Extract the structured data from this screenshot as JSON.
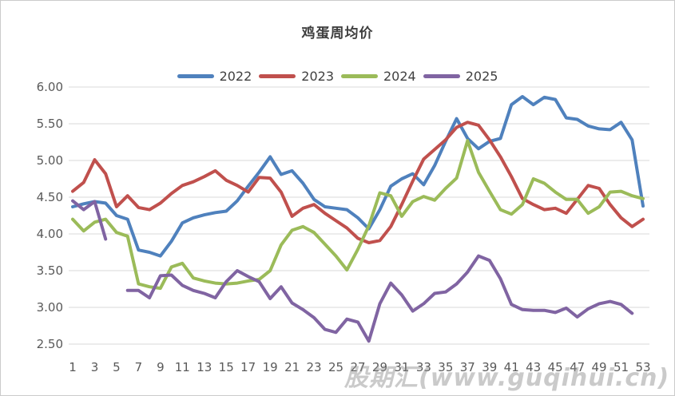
{
  "chart_data": {
    "type": "line",
    "title": "鸡蛋周均价",
    "xlabel": "",
    "ylabel": "",
    "x_ticks": [
      1,
      3,
      5,
      7,
      9,
      11,
      13,
      15,
      17,
      19,
      21,
      23,
      25,
      27,
      29,
      31,
      33,
      35,
      37,
      39,
      41,
      43,
      45,
      47,
      49,
      51,
      53
    ],
    "xlim": [
      1,
      53
    ],
    "ylim": [
      2.5,
      6.0
    ],
    "y_ticks": [
      {
        "label": "6.00",
        "value": 6.0
      },
      {
        "label": "5.50",
        "value": 5.5
      },
      {
        "label": "5.00",
        "value": 5.0
      },
      {
        "label": "4.50",
        "value": 4.5
      },
      {
        "label": "4.00",
        "value": 4.0
      },
      {
        "label": "3.50",
        "value": 3.5
      },
      {
        "label": "3.00",
        "value": 3.0
      },
      {
        "label": "2.50",
        "value": 2.5
      }
    ],
    "grid": "horizontal",
    "legend_position": "top",
    "x": [
      1,
      2,
      3,
      4,
      5,
      6,
      7,
      8,
      9,
      10,
      11,
      12,
      13,
      14,
      15,
      16,
      17,
      18,
      19,
      20,
      21,
      22,
      23,
      24,
      25,
      26,
      27,
      28,
      29,
      30,
      31,
      32,
      33,
      34,
      35,
      36,
      37,
      38,
      39,
      40,
      41,
      42,
      43,
      44,
      45,
      46,
      47,
      48,
      49,
      50,
      51,
      52,
      53
    ],
    "series": [
      {
        "name": "2022",
        "color": "#4F81BD",
        "values": [
          4.37,
          4.41,
          4.44,
          4.42,
          4.25,
          4.2,
          3.78,
          3.75,
          3.7,
          3.9,
          4.15,
          4.22,
          4.26,
          4.29,
          4.31,
          4.45,
          4.65,
          4.84,
          5.05,
          4.81,
          4.86,
          4.69,
          4.47,
          4.37,
          4.35,
          4.33,
          4.22,
          4.07,
          4.33,
          4.65,
          4.75,
          4.82,
          4.67,
          4.93,
          5.26,
          5.57,
          5.3,
          5.16,
          5.26,
          5.3,
          5.76,
          5.87,
          5.76,
          5.86,
          5.83,
          5.58,
          5.56,
          5.47,
          5.43,
          5.42,
          5.52,
          5.28,
          4.38
        ]
      },
      {
        "name": "2023",
        "color": "#C0504D",
        "values": [
          4.58,
          4.7,
          5.01,
          4.82,
          4.37,
          4.52,
          4.36,
          4.33,
          4.42,
          4.55,
          4.66,
          4.71,
          4.78,
          4.86,
          4.73,
          4.66,
          4.57,
          4.77,
          4.76,
          4.57,
          4.24,
          4.35,
          4.4,
          4.28,
          4.18,
          4.08,
          3.94,
          3.88,
          3.91,
          4.1,
          4.4,
          4.72,
          5.02,
          5.15,
          5.28,
          5.45,
          5.52,
          5.48,
          5.28,
          5.05,
          4.78,
          4.48,
          4.4,
          4.33,
          4.35,
          4.28,
          4.47,
          4.66,
          4.62,
          4.4,
          4.22,
          4.1,
          4.2
        ]
      },
      {
        "name": "2024",
        "color": "#9BBB59",
        "values": [
          4.2,
          4.04,
          4.16,
          4.2,
          4.02,
          3.97,
          3.32,
          3.28,
          3.26,
          3.55,
          3.6,
          3.4,
          3.36,
          3.33,
          3.32,
          3.33,
          3.36,
          3.38,
          3.5,
          3.85,
          4.05,
          4.1,
          4.02,
          3.86,
          3.7,
          3.51,
          3.79,
          4.11,
          4.56,
          4.52,
          4.24,
          4.44,
          4.51,
          4.46,
          4.62,
          4.76,
          5.27,
          4.84,
          4.58,
          4.33,
          4.27,
          4.4,
          4.75,
          4.69,
          4.57,
          4.47,
          4.47,
          4.28,
          4.37,
          4.57,
          4.58,
          4.52,
          4.48
        ]
      },
      {
        "name": "2025",
        "color": "#8064A2",
        "values": [
          4.45,
          4.33,
          4.44,
          3.93,
          null,
          3.23,
          3.23,
          3.13,
          3.43,
          3.44,
          3.3,
          3.23,
          3.19,
          3.13,
          3.35,
          3.5,
          3.42,
          3.35,
          3.12,
          3.28,
          3.06,
          2.97,
          2.86,
          2.7,
          2.66,
          2.84,
          2.8,
          2.54,
          3.05,
          3.33,
          3.17,
          2.95,
          3.05,
          3.19,
          3.21,
          3.32,
          3.48,
          3.7,
          3.64,
          3.39,
          3.04,
          2.97,
          2.96,
          2.96,
          2.93,
          2.99,
          2.87,
          2.98,
          3.05,
          3.08,
          3.04,
          2.92,
          null
        ]
      }
    ],
    "style": {
      "gridline_color": "#D9D9D9",
      "axis_text_color": "#595959",
      "line_width": 4
    }
  },
  "watermark": {
    "text": "股期汇(www.guqihui.cn)"
  }
}
